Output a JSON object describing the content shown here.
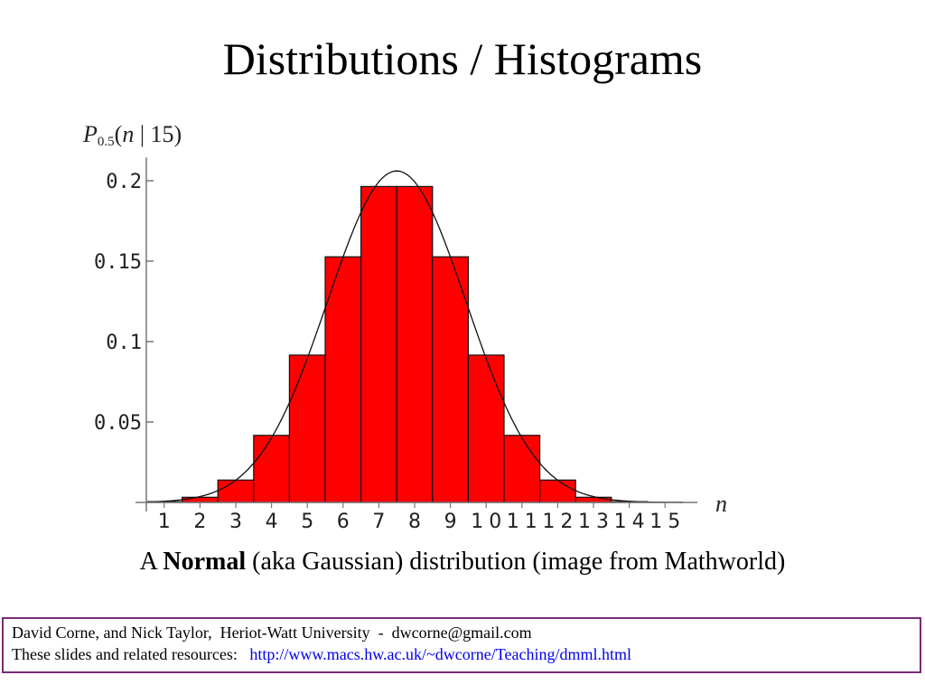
{
  "slide": {
    "title": "Distributions / Histograms"
  },
  "caption": {
    "prefix": "A ",
    "bold": "Normal",
    "suffix": " (aka Gaussian) distribution (image from Mathworld)"
  },
  "footer": {
    "line1": "David Corne, and Nick Taylor,  Heriot-Watt University  -  dwcorne@gmail.com",
    "line2_label": "These slides and related resources:",
    "line2_link": "http://www.macs.hw.ac.uk/~dwcorne/Teaching/dmml.html"
  },
  "chart_data": {
    "type": "bar",
    "title": "",
    "ylabel": {
      "p": "P",
      "sub": "0.5",
      "open": "(",
      "n": "n",
      "rest": " | 15)"
    },
    "xlabel": "n",
    "bar_color": "#ff0000",
    "categories": [
      "1",
      "2",
      "3",
      "4",
      "5",
      "6",
      "7",
      "8",
      "9",
      "10",
      "11",
      "12",
      "13",
      "14",
      "15"
    ],
    "values": [
      0.0005,
      0.0032,
      0.0139,
      0.0417,
      0.0916,
      0.1527,
      0.1964,
      0.1964,
      0.1527,
      0.0916,
      0.0417,
      0.0139,
      0.0032,
      0.0005,
      3e-05
    ],
    "ylim": [
      0,
      0.21
    ],
    "yticks": [
      0.05,
      0.1,
      0.15,
      0.2
    ],
    "ytick_labels": [
      "0.05",
      "0.1",
      "0.15",
      "0.2"
    ],
    "overlay_curve": {
      "type": "normal",
      "mean": 7.5,
      "sd": 1.936
    },
    "grid": false,
    "legend": "none"
  }
}
